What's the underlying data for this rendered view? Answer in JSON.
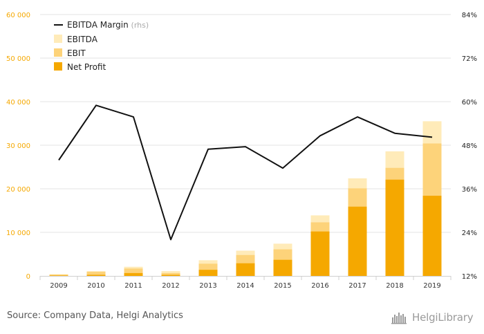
{
  "chart_data": {
    "type": "bar",
    "stacked": true,
    "categories": [
      "2009",
      "2010",
      "2011",
      "2012",
      "2013",
      "2014",
      "2015",
      "2016",
      "2017",
      "2018",
      "2019"
    ],
    "series": [
      {
        "name": "Net Profit",
        "color": "#f5a800",
        "values": [
          100,
          250,
          650,
          250,
          1400,
          2900,
          3700,
          10200,
          15900,
          22100,
          18400
        ]
      },
      {
        "name": "EBIT",
        "color": "#fdd37a",
        "values": [
          300,
          950,
          1700,
          650,
          2800,
          4800,
          6100,
          12300,
          20100,
          24800,
          30400
        ]
      },
      {
        "name": "EBITDA",
        "color": "#ffebb9",
        "values": [
          400,
          1100,
          2100,
          1100,
          3600,
          5800,
          7400,
          13900,
          22400,
          28600,
          35500
        ]
      }
    ],
    "line": {
      "name": "EBITDA Margin",
      "suffix": "(rhs)",
      "color": "#111111",
      "values": [
        43.9,
        59.0,
        55.8,
        22.0,
        46.9,
        47.6,
        41.7,
        50.6,
        55.8,
        51.3,
        50.2
      ]
    },
    "y_left": {
      "min": 0,
      "max": 60000,
      "ticks": [
        0,
        10000,
        20000,
        30000,
        40000,
        50000,
        60000
      ],
      "labels": [
        "0",
        "10 000",
        "20 000",
        "30 000",
        "40 000",
        "50 000",
        "60 000"
      ],
      "color": "#f5a800"
    },
    "y_right": {
      "min": 12,
      "max": 84,
      "ticks": [
        12,
        24,
        36,
        48,
        60,
        72,
        84
      ],
      "labels": [
        "12%",
        "24%",
        "36%",
        "48%",
        "60%",
        "72%",
        "84%"
      ]
    },
    "legend_position": "top-left",
    "grid": "horizontal"
  },
  "footer": {
    "source": "Source: Company Data, Helgi Analytics",
    "brand": "HelgiLibrary"
  }
}
